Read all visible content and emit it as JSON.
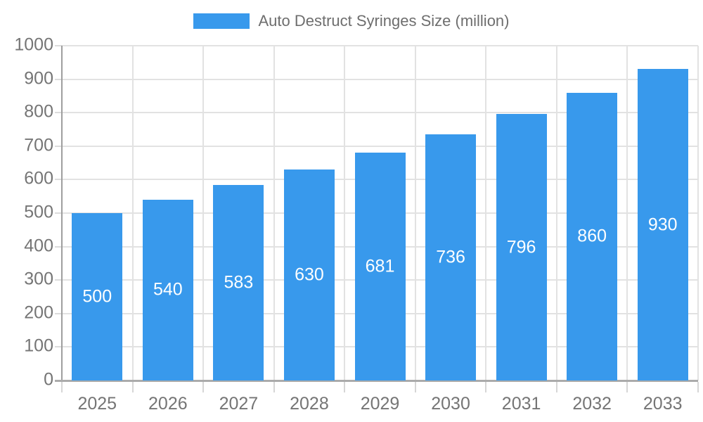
{
  "legend": {
    "label": "Auto Destruct Syringes Size (million)",
    "swatch_color": "#3899EC"
  },
  "chart_data": {
    "type": "bar",
    "categories": [
      "2025",
      "2026",
      "2027",
      "2028",
      "2029",
      "2030",
      "2031",
      "2032",
      "2033"
    ],
    "values": [
      500,
      540,
      583,
      630,
      681,
      736,
      796,
      860,
      930
    ],
    "series_name": "Auto Destruct Syringes Size (million)",
    "title": "",
    "xlabel": "",
    "ylabel": "",
    "ylim": [
      0,
      1000
    ],
    "ytick_step": 100,
    "ytick_labels": [
      "0",
      "100",
      "200",
      "300",
      "400",
      "500",
      "600",
      "700",
      "800",
      "900",
      "1000"
    ],
    "grid": true,
    "legend_position": "top",
    "bar_color": "#3899EC",
    "bar_label_color": "#FFFFFF",
    "axis_text_color": "#757575",
    "grid_color": "#E2E2E2",
    "axis_line_color": "#9E9E9E"
  }
}
